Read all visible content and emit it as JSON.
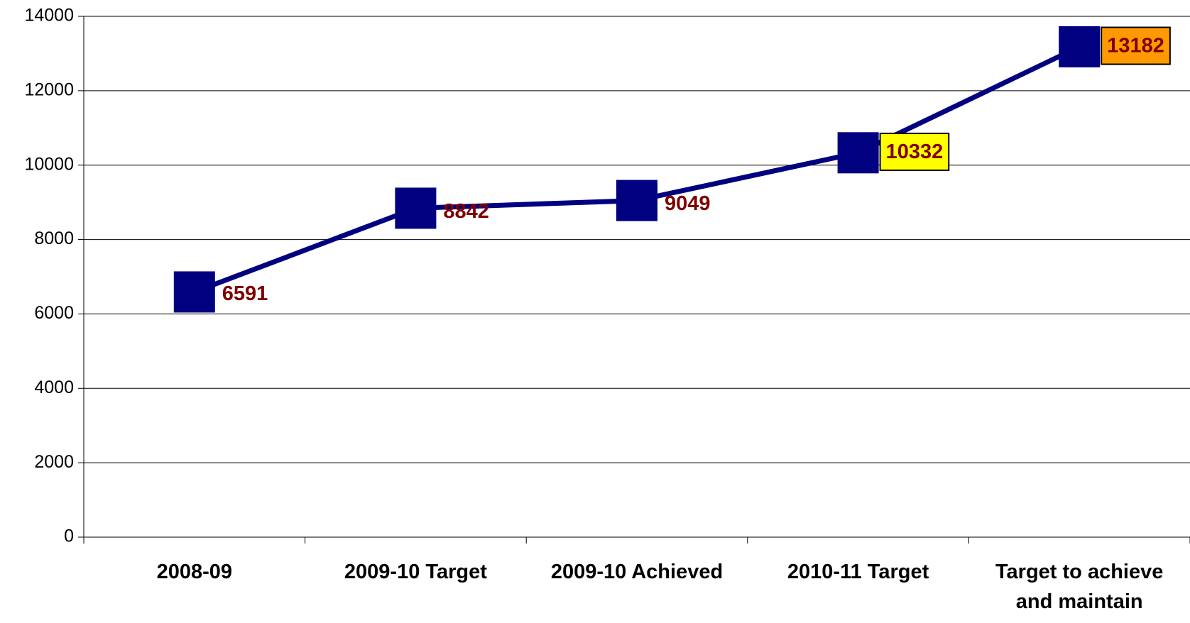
{
  "chart_data": {
    "type": "line",
    "categories": [
      "2008-09",
      "2009-10 Target",
      "2009-10 Achieved",
      "2010-11 Target",
      "Target to achieve and maintain"
    ],
    "values": [
      6591,
      8842,
      9049,
      10332,
      13182
    ],
    "color": "#000080",
    "label_color": "#800000",
    "label_backgrounds": [
      null,
      null,
      null,
      "#ffff00",
      "#ff9900"
    ],
    "ylim": [
      0,
      14000
    ],
    "yticks": [
      0,
      2000,
      4000,
      6000,
      8000,
      10000,
      12000,
      14000
    ],
    "grid": true
  }
}
